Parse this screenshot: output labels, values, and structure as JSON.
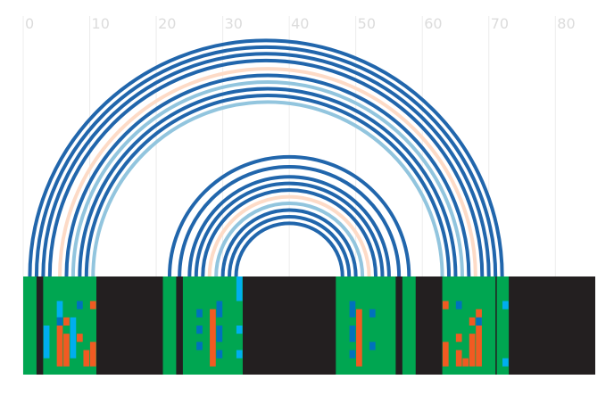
{
  "chart_data": {
    "type": "arc-diagram",
    "title": "",
    "xlabel": "",
    "ylabel": "",
    "xlim": [
      0,
      86
    ],
    "x_ticks": [
      0,
      10,
      20,
      30,
      40,
      50,
      60,
      70,
      80
    ],
    "grid": true,
    "colors": {
      "blue": "#2166ac",
      "light_blue": "#92c5de",
      "peach": "#fddbc7",
      "track_black": "#231f20",
      "block_green": "#00a651",
      "mark_orange": "#f15a22",
      "mark_cyan": "#00aeef",
      "mark_blue": "#0072bc"
    },
    "arcs": [
      {
        "start": 1,
        "end": 72,
        "color": "blue"
      },
      {
        "start": 2,
        "end": 71,
        "color": "blue"
      },
      {
        "start": 3,
        "end": 70,
        "color": "blue"
      },
      {
        "start": 4,
        "end": 69,
        "color": "blue"
      },
      {
        "start": 5.5,
        "end": 68,
        "color": "peach"
      },
      {
        "start": 6.5,
        "end": 67,
        "color": "blue"
      },
      {
        "start": 7.5,
        "end": 66,
        "color": "light_blue"
      },
      {
        "start": 8.5,
        "end": 65,
        "color": "blue"
      },
      {
        "start": 9.5,
        "end": 64,
        "color": "blue"
      },
      {
        "start": 10.5,
        "end": 63,
        "color": "light_blue"
      },
      {
        "start": 22,
        "end": 58,
        "color": "blue"
      },
      {
        "start": 23.5,
        "end": 56.5,
        "color": "blue"
      },
      {
        "start": 25,
        "end": 55,
        "color": "blue"
      },
      {
        "start": 26,
        "end": 54,
        "color": "blue"
      },
      {
        "start": 27,
        "end": 53,
        "color": "blue"
      },
      {
        "start": 28,
        "end": 52,
        "color": "peach"
      },
      {
        "start": 29,
        "end": 51,
        "color": "light_blue"
      },
      {
        "start": 30,
        "end": 50,
        "color": "blue"
      },
      {
        "start": 31,
        "end": 49,
        "color": "blue"
      },
      {
        "start": 32,
        "end": 48,
        "color": "blue"
      }
    ],
    "track_segments": [
      {
        "start": 0,
        "end": 11,
        "color": "block_green"
      },
      {
        "start": 2,
        "end": 3,
        "color": "track_black"
      },
      {
        "start": 21,
        "end": 33,
        "color": "block_green"
      },
      {
        "start": 23,
        "end": 24,
        "color": "track_black"
      },
      {
        "start": 47,
        "end": 59,
        "color": "block_green"
      },
      {
        "start": 56,
        "end": 57,
        "color": "track_black"
      },
      {
        "start": 63,
        "end": 73,
        "color": "block_green"
      },
      {
        "start": 71,
        "end": 71.2,
        "color": "track_black"
      }
    ],
    "marks": [
      {
        "col": 5.5,
        "row": 3,
        "rows": 2,
        "color": "mark_cyan"
      },
      {
        "col": 5.5,
        "row": 5,
        "rows": 1,
        "color": "mark_blue"
      },
      {
        "col": 5.5,
        "row": 6,
        "rows": 5,
        "color": "mark_orange"
      },
      {
        "col": 3.5,
        "row": 6,
        "rows": 4,
        "color": "mark_cyan"
      },
      {
        "col": 6.5,
        "row": 5,
        "rows": 1,
        "color": "mark_orange"
      },
      {
        "col": 6.5,
        "row": 7,
        "rows": 4,
        "color": "mark_orange"
      },
      {
        "col": 7.5,
        "row": 5,
        "rows": 1,
        "color": "mark_cyan"
      },
      {
        "col": 7.5,
        "row": 6,
        "rows": 4,
        "color": "mark_cyan"
      },
      {
        "col": 8.5,
        "row": 3,
        "rows": 1,
        "color": "mark_blue"
      },
      {
        "col": 8.5,
        "row": 7,
        "rows": 1,
        "color": "mark_orange"
      },
      {
        "col": 9.5,
        "row": 9,
        "rows": 2,
        "color": "mark_orange"
      },
      {
        "col": 10.5,
        "row": 3,
        "rows": 1,
        "color": "mark_orange"
      },
      {
        "col": 10.5,
        "row": 8,
        "rows": 3,
        "color": "mark_orange"
      },
      {
        "col": 26.5,
        "row": 4,
        "rows": 1,
        "color": "mark_blue"
      },
      {
        "col": 26.5,
        "row": 6,
        "rows": 1,
        "color": "mark_blue"
      },
      {
        "col": 26.5,
        "row": 8,
        "rows": 1,
        "color": "mark_blue"
      },
      {
        "col": 28.5,
        "row": 4,
        "rows": 7,
        "color": "mark_orange"
      },
      {
        "col": 29.5,
        "row": 3,
        "rows": 2,
        "color": "mark_blue"
      },
      {
        "col": 29.5,
        "row": 6,
        "rows": 2,
        "color": "mark_blue"
      },
      {
        "col": 29.5,
        "row": 9,
        "rows": 1,
        "color": "mark_blue"
      },
      {
        "col": 32.5,
        "row": 0,
        "rows": 3,
        "color": "mark_cyan"
      },
      {
        "col": 32.5,
        "row": 6,
        "rows": 1,
        "color": "mark_cyan"
      },
      {
        "col": 32.5,
        "row": 9,
        "rows": 1,
        "color": "mark_cyan"
      },
      {
        "col": 49.5,
        "row": 3,
        "rows": 2,
        "color": "mark_blue"
      },
      {
        "col": 49.5,
        "row": 6,
        "rows": 2,
        "color": "mark_blue"
      },
      {
        "col": 49.5,
        "row": 9,
        "rows": 1,
        "color": "mark_blue"
      },
      {
        "col": 50.5,
        "row": 4,
        "rows": 7,
        "color": "mark_orange"
      },
      {
        "col": 52.5,
        "row": 4,
        "rows": 1,
        "color": "mark_blue"
      },
      {
        "col": 52.5,
        "row": 8,
        "rows": 1,
        "color": "mark_blue"
      },
      {
        "col": 63.5,
        "row": 3,
        "rows": 1,
        "color": "mark_orange"
      },
      {
        "col": 63.5,
        "row": 8,
        "rows": 3,
        "color": "mark_orange"
      },
      {
        "col": 65.5,
        "row": 3,
        "rows": 1,
        "color": "mark_blue"
      },
      {
        "col": 65.5,
        "row": 7,
        "rows": 1,
        "color": "mark_orange"
      },
      {
        "col": 65.5,
        "row": 9,
        "rows": 2,
        "color": "mark_orange"
      },
      {
        "col": 66.5,
        "row": 10,
        "rows": 1,
        "color": "mark_orange"
      },
      {
        "col": 67.5,
        "row": 5,
        "rows": 1,
        "color": "mark_orange"
      },
      {
        "col": 67.5,
        "row": 7,
        "rows": 4,
        "color": "mark_orange"
      },
      {
        "col": 68.5,
        "row": 4,
        "rows": 7,
        "color": "mark_orange"
      },
      {
        "col": 68.5,
        "row": 5,
        "rows": 1,
        "color": "mark_blue"
      },
      {
        "col": 72.5,
        "row": 3,
        "rows": 1,
        "color": "mark_cyan"
      },
      {
        "col": 72.5,
        "row": 10,
        "rows": 1,
        "color": "mark_cyan"
      }
    ]
  }
}
